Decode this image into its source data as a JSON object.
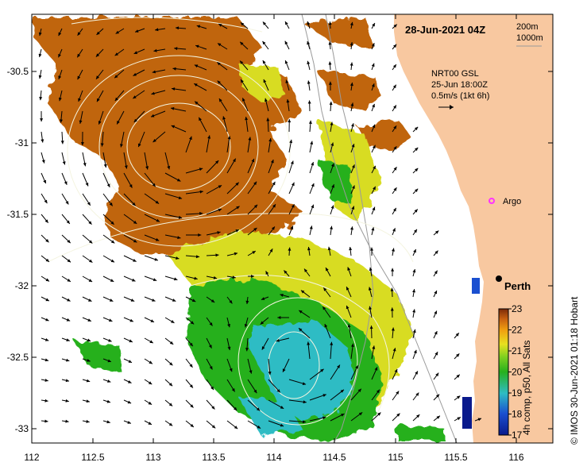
{
  "header": {
    "date_label": "28-Jun-2021 04Z",
    "contour_legend": [
      "200m",
      "1000m"
    ]
  },
  "velocity": {
    "source": "NRT00 GSL",
    "time": "25-Jun 18:00Z",
    "scale": "0.5m/s (1kt 6h)"
  },
  "places": {
    "argo": "Argo",
    "perth": "Perth"
  },
  "axes": {
    "lon_ticks": [
      "112",
      "112.5",
      "113",
      "113.5",
      "114",
      "114.5",
      "115",
      "115.5",
      "116"
    ],
    "lat_ticks": [
      "-30.5",
      "-31",
      "-31.5",
      "-32",
      "-32.5",
      "-33"
    ]
  },
  "colorbar": {
    "ticks": [
      "23",
      "22",
      "21",
      "20",
      "19",
      "18",
      "17"
    ],
    "label": "4h comp, p50, All Sats"
  },
  "credit": "© IMOS 30-Jun-2021 01:18 Hobart",
  "colors": {
    "land": "#f8c8a0",
    "warm": "#c0650f",
    "mid": "#26b01e",
    "cool": "#2fbcc4",
    "argo": "#ff33ff"
  }
}
